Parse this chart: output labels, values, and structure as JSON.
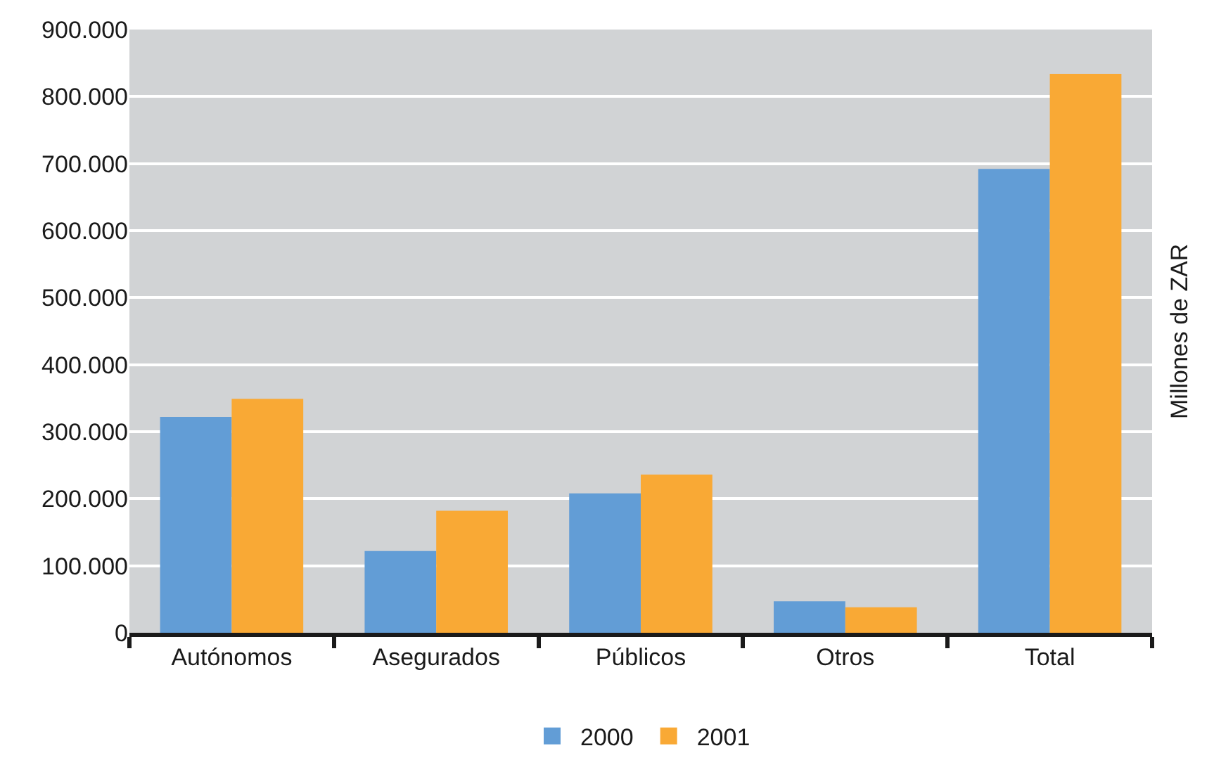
{
  "chart_data": {
    "type": "bar",
    "ylabel": "Millones de ZAR",
    "categories": [
      "Autónomos",
      "Asegurados",
      "Públicos",
      "Otros",
      "Total"
    ],
    "series": [
      {
        "name": "2000",
        "color": "#629dd6",
        "values": [
          322000,
          122000,
          208000,
          47000,
          692000
        ]
      },
      {
        "name": "2001",
        "color": "#f9a935",
        "values": [
          349000,
          182000,
          236000,
          38000,
          834000
        ]
      }
    ],
    "ylim": [
      0,
      900000
    ],
    "yticks": [
      {
        "value": 0,
        "label": "0"
      },
      {
        "value": 100000,
        "label": "100.000"
      },
      {
        "value": 200000,
        "label": "200.000"
      },
      {
        "value": 300000,
        "label": "300.000"
      },
      {
        "value": 400000,
        "label": "400.000"
      },
      {
        "value": 500000,
        "label": "500.000"
      },
      {
        "value": 600000,
        "label": "600.000"
      },
      {
        "value": 700000,
        "label": "700.000"
      },
      {
        "value": 800000,
        "label": "800.000"
      },
      {
        "value": 900000,
        "label": "900.000"
      }
    ],
    "grid": "y",
    "legend": "bottom"
  }
}
